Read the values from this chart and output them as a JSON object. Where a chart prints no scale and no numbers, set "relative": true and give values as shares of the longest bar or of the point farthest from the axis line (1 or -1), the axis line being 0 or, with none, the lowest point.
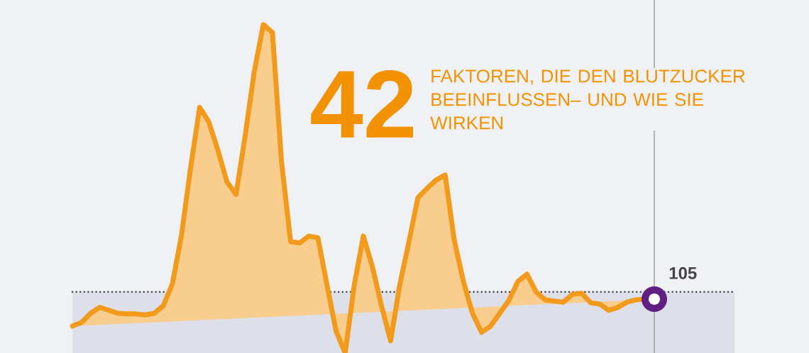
{
  "chart_data": {
    "type": "area",
    "title": "42",
    "subtitle": "FAKTOREN, DIE DEN BLUTZUCKER BEEINFLUSSEN– UND WIE SIE WIRKEN",
    "relative": true,
    "categories": [
      null,
      null,
      null,
      null,
      null,
      null,
      null,
      null,
      null,
      null,
      null,
      null,
      null,
      null,
      null,
      null,
      null,
      null,
      null,
      null,
      null,
      null,
      null,
      null,
      null,
      null,
      null,
      null,
      null,
      null,
      null,
      null,
      null,
      null,
      null,
      null,
      null,
      null,
      null,
      null,
      null,
      null,
      null,
      null,
      null,
      null,
      null,
      null,
      null,
      null,
      null,
      null,
      null,
      null,
      null,
      null,
      null,
      null,
      null,
      null,
      null,
      null,
      null,
      null,
      null
    ],
    "series": [
      {
        "color": "#f29a1c",
        "values": [
          0.082,
          0.093,
          0.121,
          0.139,
          0.13,
          0.121,
          0.119,
          0.119,
          0.116,
          0.121,
          0.144,
          0.211,
          0.358,
          0.564,
          0.748,
          0.704,
          0.618,
          0.521,
          0.483,
          0.661,
          0.856,
          1,
          0.976,
          0.583,
          0.339,
          0.335,
          0.356,
          0.351,
          0.207,
          0.067,
          0,
          0.207,
          0.356,
          0.262,
          0.143,
          0.037,
          0.207,
          0.337,
          0.473,
          0.501,
          0.527,
          0.542,
          0.343,
          0.218,
          0.121,
          0.063,
          0.082,
          0.121,
          0.16,
          0.218,
          0.24,
          0.186,
          0.162,
          0.158,
          0.155,
          0.179,
          0.182,
          0.153,
          0.149,
          0.13,
          0.139,
          0.155,
          0.162,
          0.164,
          0.164
        ]
      }
    ],
    "ref_lines": [
      {
        "axis": "y",
        "value": 0.186,
        "color": "#4a4a4a",
        "line_style": "dotted"
      }
    ],
    "bands": [
      {
        "axis": "y",
        "from": 0,
        "to": 0.186,
        "color": "#dde0e8"
      }
    ],
    "annotations": [
      "105"
    ]
  }
}
